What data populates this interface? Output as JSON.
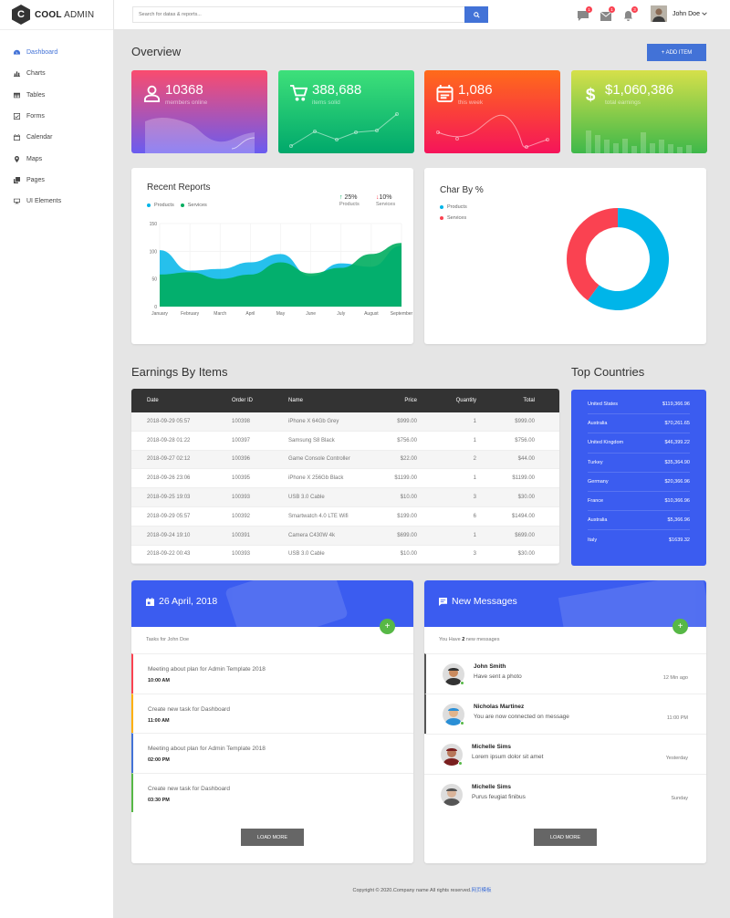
{
  "app": {
    "logo_letter": "C",
    "logo_bold": "COOL",
    "logo_rest": " ADMIN"
  },
  "sidebar": {
    "items": [
      {
        "label": "Dashboard",
        "icon": "tachometer-icon",
        "active": true
      },
      {
        "label": "Charts",
        "icon": "bar-chart-icon"
      },
      {
        "label": "Tables",
        "icon": "table-icon"
      },
      {
        "label": "Forms",
        "icon": "checkbox-icon"
      },
      {
        "label": "Calendar",
        "icon": "calendar-icon"
      },
      {
        "label": "Maps",
        "icon": "map-marker-icon"
      },
      {
        "label": "Pages",
        "icon": "copy-icon"
      },
      {
        "label": "UI Elements",
        "icon": "desktop-icon"
      }
    ]
  },
  "header": {
    "search_placeholder": "Search for datas & reports...",
    "badges": {
      "comments": "1",
      "mail": "1",
      "bell": "3"
    },
    "user_name": "John Doe"
  },
  "overview": {
    "title": "Overview",
    "add_button": "+ ADD ITEM",
    "stats": [
      {
        "value": "10368",
        "label": "members online",
        "icon": "user-icon"
      },
      {
        "value": "388,688",
        "label": "items solid",
        "icon": "shopping-cart-icon"
      },
      {
        "value": "1,086",
        "label": "this week",
        "icon": "calendar-note-icon"
      },
      {
        "value": "$1,060,386",
        "label": "total earnings",
        "icon": "dollar-icon"
      }
    ]
  },
  "recent_reports": {
    "title": "Recent Reports",
    "legend": [
      "Products",
      "Services"
    ],
    "stat1": {
      "value": "25%",
      "label": "Products"
    },
    "stat2": {
      "value": "10%",
      "label": "Services"
    }
  },
  "char_by": {
    "title": "Char By %",
    "legend": [
      "Products",
      "Services"
    ]
  },
  "chart_data": [
    {
      "type": "area",
      "title": "Recent Reports",
      "categories": [
        "January",
        "February",
        "March",
        "April",
        "May",
        "June",
        "July",
        "August",
        "September"
      ],
      "y_ticks": [
        "0",
        "50",
        "100",
        "150"
      ],
      "ylim": [
        0,
        150
      ],
      "series": [
        {
          "name": "Products",
          "color": "#00b5e9",
          "values": [
            102,
            65,
            68,
            80,
            95,
            55,
            78,
            72,
            110
          ]
        },
        {
          "name": "Services",
          "color": "#00ad5f",
          "values": [
            58,
            62,
            50,
            58,
            80,
            60,
            70,
            95,
            115
          ]
        }
      ]
    },
    {
      "type": "pie",
      "title": "Char By %",
      "series": [
        {
          "name": "Products",
          "value": 60,
          "color": "#00b5e9"
        },
        {
          "name": "Services",
          "value": 40,
          "color": "#fa4251"
        }
      ]
    }
  ],
  "earnings": {
    "title": "Earnings By Items",
    "headers": [
      "Date",
      "Order ID",
      "Name",
      "Price",
      "Quantity",
      "Total"
    ],
    "rows": [
      [
        "2018-09-29 05:57",
        "100398",
        "iPhone X 64Gb Grey",
        "$999.00",
        "1",
        "$999.00"
      ],
      [
        "2018-09-28 01:22",
        "100397",
        "Samsung S8 Black",
        "$756.00",
        "1",
        "$756.00"
      ],
      [
        "2018-09-27 02:12",
        "100396",
        "Game Console Controller",
        "$22.00",
        "2",
        "$44.00"
      ],
      [
        "2018-09-26 23:06",
        "100395",
        "iPhone X 256Gb Black",
        "$1199.00",
        "1",
        "$1199.00"
      ],
      [
        "2018-09-25 19:03",
        "100393",
        "USB 3.0 Cable",
        "$10.00",
        "3",
        "$30.00"
      ],
      [
        "2018-09-29 05:57",
        "100392",
        "Smartwatch 4.0 LTE Wifi",
        "$199.00",
        "6",
        "$1494.00"
      ],
      [
        "2018-09-24 19:10",
        "100391",
        "Camera C430W 4k",
        "$699.00",
        "1",
        "$699.00"
      ],
      [
        "2018-09-22 00:43",
        "100393",
        "USB 3.0 Cable",
        "$10.00",
        "3",
        "$30.00"
      ]
    ]
  },
  "top_countries": {
    "title": "Top Countries",
    "rows": [
      [
        "United States",
        "$119,366.96"
      ],
      [
        "Australia",
        "$70,261.65"
      ],
      [
        "United Kingdom",
        "$46,399.22"
      ],
      [
        "Turkey",
        "$35,364.90"
      ],
      [
        "Germany",
        "$20,366.96"
      ],
      [
        "France",
        "$10,366.96"
      ],
      [
        "Australia",
        "$5,366.96"
      ],
      [
        "Italy",
        "$1639.32"
      ]
    ]
  },
  "tasks": {
    "date": "26 April, 2018",
    "subtitle": "Tasks for John Doe",
    "items": [
      {
        "text": "Meeting about plan for Admin Template 2018",
        "time": "10:00 AM",
        "color": "#fa4251"
      },
      {
        "text": "Create new task for Dashboard",
        "time": "11:00 AM",
        "color": "#ffb000"
      },
      {
        "text": "Meeting about plan for Admin Template 2018",
        "time": "02:00 PM",
        "color": "#4272d7"
      },
      {
        "text": "Create new task for Dashboard",
        "time": "03:30 PM",
        "color": "#57b846"
      }
    ],
    "load_more": "LOAD MORE"
  },
  "messages": {
    "title": "New Messages",
    "subtitle_pre": "You Have ",
    "subtitle_count": "2",
    "subtitle_post": " new messages",
    "items": [
      {
        "name": "John Smith",
        "text": "Have sent a photo",
        "time": "12 Min ago"
      },
      {
        "name": "Nicholas Martinez",
        "text": "You are now connected on message",
        "time": "11:00 PM"
      },
      {
        "name": "Michelle Sims",
        "text": "Lorem ipsum dolor sit amet",
        "time": "Yesterday"
      },
      {
        "name": "Michelle Sims",
        "text": "Purus feugiat finibus",
        "time": "Sunday"
      }
    ],
    "load_more": "LOAD MORE"
  },
  "footer": {
    "text": "Copyright © 2020.Company name All rights reserved.",
    "link": "网页模板"
  }
}
